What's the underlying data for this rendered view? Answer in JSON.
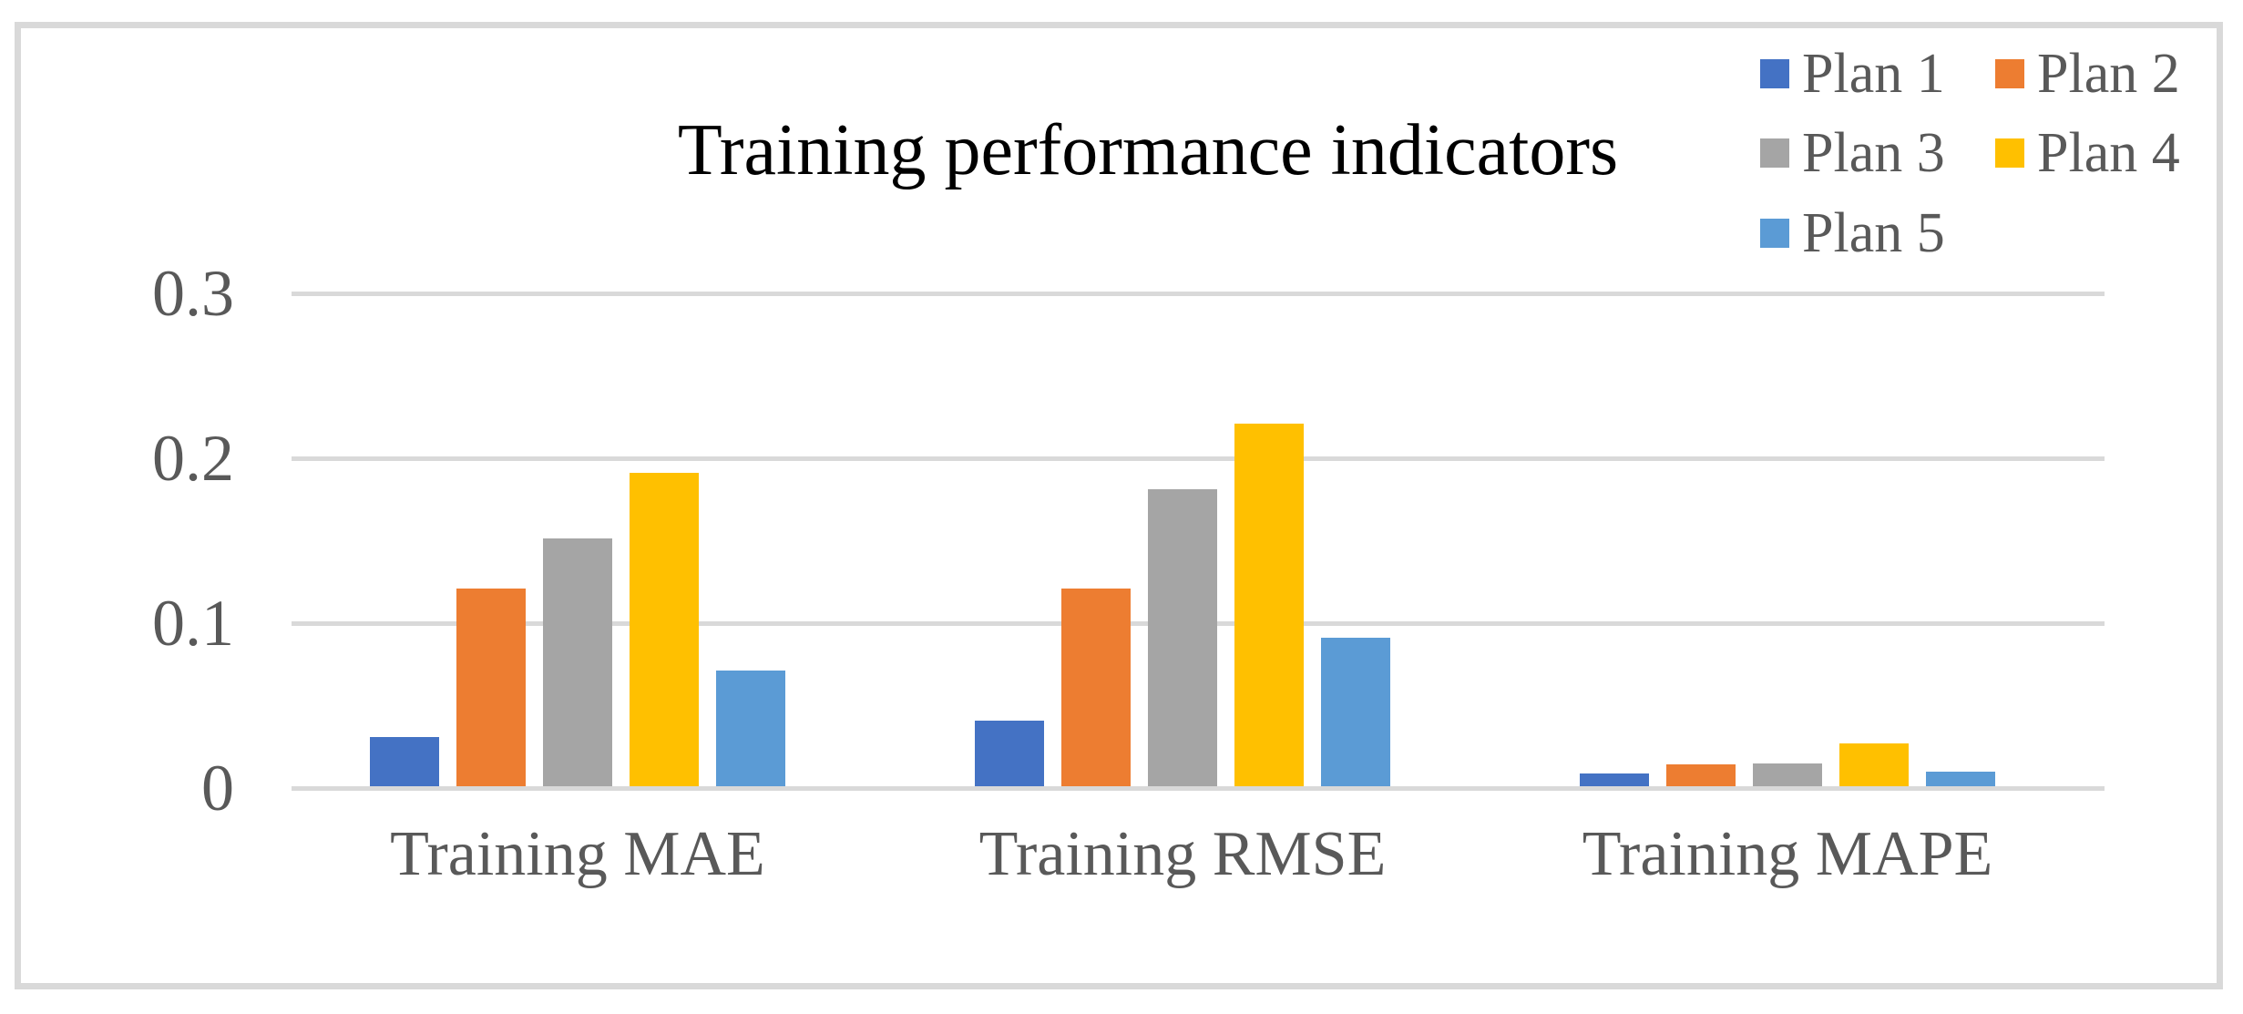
{
  "chart_data": {
    "type": "bar",
    "title": "Training performance indicators",
    "categories": [
      "Training MAE",
      "Training RMSE",
      "Training MAPE"
    ],
    "series": [
      {
        "name": "Plan 1",
        "color": "#4472C4",
        "values": [
          0.03,
          0.04,
          0.008
        ]
      },
      {
        "name": "Plan 2",
        "color": "#ED7D31",
        "values": [
          0.12,
          0.12,
          0.013
        ]
      },
      {
        "name": "Plan 3",
        "color": "#A5A5A5",
        "values": [
          0.15,
          0.18,
          0.014
        ]
      },
      {
        "name": "Plan 4",
        "color": "#FFC000",
        "values": [
          0.19,
          0.22,
          0.026
        ]
      },
      {
        "name": "Plan 5",
        "color": "#5B9BD5",
        "values": [
          0.07,
          0.09,
          0.009
        ]
      }
    ],
    "xlabel": "",
    "ylabel": "",
    "ylim": [
      0,
      0.3
    ],
    "ytick_labels": [
      "0",
      "0.1",
      "0.2",
      "0.3"
    ],
    "ytick_values": [
      0,
      0.1,
      0.2,
      0.3
    ],
    "grid": true,
    "legend_position": "top-right",
    "legend_rows": [
      [
        "Plan 1",
        "Plan 2"
      ],
      [
        "Plan 3",
        "Plan 4"
      ],
      [
        "Plan 5"
      ]
    ]
  },
  "colors": {
    "background": "#FFFFFF",
    "frame_border": "#D9D9D9",
    "gridline": "#D9D9D9",
    "axis_text": "#595959",
    "title_text": "#000000"
  }
}
